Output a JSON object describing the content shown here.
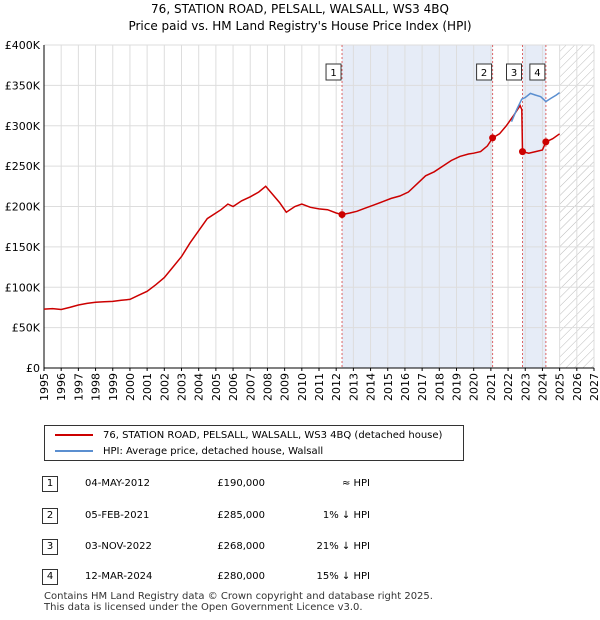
{
  "title_line1": "76, STATION ROAD, PELSALL, WALSALL, WS3 4BQ",
  "title_line2": "Price paid vs. HM Land Registry's House Price Index (HPI)",
  "chart_data": {
    "type": "line",
    "xlim": [
      1995,
      2027
    ],
    "ylim": [
      0,
      400000
    ],
    "y_ticks": [
      0,
      50000,
      100000,
      150000,
      200000,
      250000,
      300000,
      350000,
      400000
    ],
    "y_tick_labels": [
      "£0",
      "£50K",
      "£100K",
      "£150K",
      "£200K",
      "£250K",
      "£300K",
      "£350K",
      "£400K"
    ],
    "x_ticks": [
      1995,
      1996,
      1997,
      1998,
      1999,
      2000,
      2001,
      2002,
      2003,
      2004,
      2005,
      2006,
      2007,
      2008,
      2009,
      2010,
      2011,
      2012,
      2013,
      2014,
      2015,
      2016,
      2017,
      2018,
      2019,
      2020,
      2021,
      2022,
      2023,
      2024,
      2025,
      2026,
      2027
    ],
    "x_tick_labels": [
      "1995",
      "1996",
      "1997",
      "1998",
      "1999",
      "2000",
      "2001",
      "2002",
      "2003",
      "2004",
      "2005",
      "2006",
      "2007",
      "2008",
      "2009",
      "2010",
      "2011",
      "2012",
      "2013",
      "2014",
      "2015",
      "2016",
      "2017",
      "2018",
      "2019",
      "2020",
      "2021",
      "2022",
      "2023",
      "2024",
      "2025",
      "2026",
      "2027"
    ],
    "future_start": 2025.0,
    "series": [
      {
        "name": "76, STATION ROAD, PELSALL, WALSALL, WS3 4BQ (detached house)",
        "color": "#cc0000",
        "points": [
          [
            1995.0,
            73000
          ],
          [
            1995.5,
            73500
          ],
          [
            1996.0,
            72500
          ],
          [
            1996.5,
            75000
          ],
          [
            1997.0,
            78000
          ],
          [
            1997.5,
            80000
          ],
          [
            1998.0,
            81500
          ],
          [
            1998.5,
            82000
          ],
          [
            1999.0,
            82500
          ],
          [
            1999.5,
            84000
          ],
          [
            2000.0,
            85000
          ],
          [
            2000.5,
            90000
          ],
          [
            2001.0,
            95000
          ],
          [
            2001.5,
            103000
          ],
          [
            2002.0,
            112000
          ],
          [
            2002.5,
            125000
          ],
          [
            2003.0,
            138000
          ],
          [
            2003.5,
            155000
          ],
          [
            2004.0,
            170000
          ],
          [
            2004.5,
            185000
          ],
          [
            2005.0,
            192000
          ],
          [
            2005.3,
            196000
          ],
          [
            2005.7,
            203000
          ],
          [
            2006.0,
            200000
          ],
          [
            2006.5,
            207000
          ],
          [
            2007.0,
            212000
          ],
          [
            2007.5,
            218000
          ],
          [
            2007.9,
            225000
          ],
          [
            2008.3,
            215000
          ],
          [
            2008.7,
            205000
          ],
          [
            2009.1,
            193000
          ],
          [
            2009.6,
            200000
          ],
          [
            2010.0,
            203000
          ],
          [
            2010.5,
            199000
          ],
          [
            2011.0,
            197000
          ],
          [
            2011.5,
            196000
          ],
          [
            2012.0,
            192000
          ],
          [
            2012.34,
            190000
          ],
          [
            2012.8,
            192000
          ],
          [
            2013.2,
            194000
          ],
          [
            2013.7,
            198000
          ],
          [
            2014.2,
            202000
          ],
          [
            2014.7,
            206000
          ],
          [
            2015.2,
            210000
          ],
          [
            2015.7,
            213000
          ],
          [
            2016.2,
            218000
          ],
          [
            2016.7,
            228000
          ],
          [
            2017.2,
            238000
          ],
          [
            2017.7,
            243000
          ],
          [
            2018.2,
            250000
          ],
          [
            2018.7,
            257000
          ],
          [
            2019.2,
            262000
          ],
          [
            2019.7,
            265000
          ],
          [
            2020.0,
            266000
          ],
          [
            2020.4,
            268000
          ],
          [
            2020.8,
            275000
          ],
          [
            2021.1,
            285000
          ],
          [
            2021.5,
            290000
          ],
          [
            2021.9,
            300000
          ],
          [
            2022.3,
            312000
          ],
          [
            2022.7,
            325000
          ],
          [
            2022.8,
            320000
          ],
          [
            2022.84,
            268000
          ],
          [
            2023.2,
            266000
          ],
          [
            2023.6,
            268000
          ],
          [
            2024.0,
            270000
          ],
          [
            2024.2,
            280000
          ],
          [
            2024.6,
            284000
          ],
          [
            2025.0,
            290000
          ]
        ]
      },
      {
        "name": "HPI: Average price, detached house, Walsall",
        "color": "#5b8fd0",
        "points": [
          [
            2022.2,
            305000
          ],
          [
            2022.5,
            320000
          ],
          [
            2022.8,
            333000
          ],
          [
            2023.0,
            335000
          ],
          [
            2023.3,
            340000
          ],
          [
            2023.6,
            338000
          ],
          [
            2023.9,
            336000
          ],
          [
            2024.2,
            330000
          ],
          [
            2024.5,
            334000
          ],
          [
            2024.8,
            338000
          ],
          [
            2025.0,
            341000
          ]
        ]
      }
    ],
    "markers": [
      {
        "label": "1",
        "date": 2012.34,
        "price": 190000
      },
      {
        "label": "2",
        "date": 2021.1,
        "price": 285000
      },
      {
        "label": "3",
        "date": 2022.84,
        "price": 268000
      },
      {
        "label": "4",
        "date": 2024.2,
        "price": 280000
      }
    ]
  },
  "legend": {
    "property_label": "76, STATION ROAD, PELSALL, WALSALL, WS3 4BQ (detached house)",
    "hpi_label": "HPI: Average price, detached house, Walsall"
  },
  "sales": [
    {
      "num": "1",
      "date": "04-MAY-2012",
      "price": "£190,000",
      "hpi": "≈ HPI"
    },
    {
      "num": "2",
      "date": "05-FEB-2021",
      "price": "£285,000",
      "hpi": "1% ↓ HPI"
    },
    {
      "num": "3",
      "date": "03-NOV-2022",
      "price": "£268,000",
      "hpi": "21% ↓ HPI"
    },
    {
      "num": "4",
      "date": "12-MAR-2024",
      "price": "£280,000",
      "hpi": "15% ↓ HPI"
    }
  ],
  "footer": {
    "line1": "Contains HM Land Registry data © Crown copyright and database right 2025.",
    "line2": "This data is licensed under the Open Government Licence v3.0."
  },
  "colors": {
    "property": "#cc0000",
    "hpi": "#5b8fd0",
    "grid": "#dddddd",
    "shade": "#e6ecf7",
    "vline": "#dd6666"
  }
}
